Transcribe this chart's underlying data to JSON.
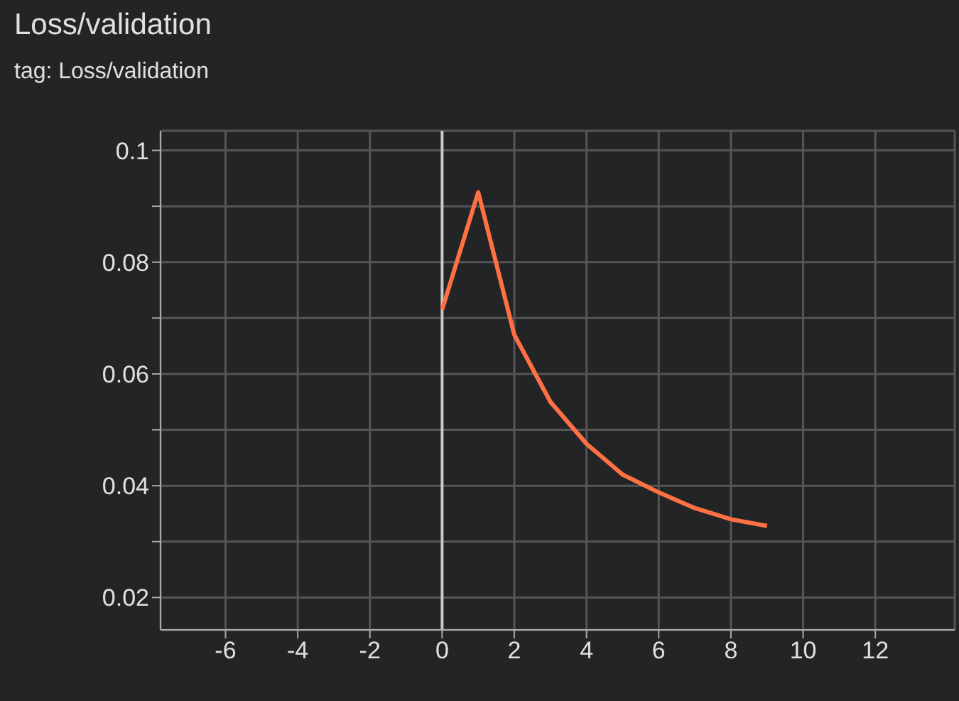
{
  "chart_data": {
    "type": "line",
    "title": "Loss/validation",
    "subtitle": "tag: Loss/validation",
    "x": [
      0,
      1,
      2,
      3,
      4,
      5,
      6,
      7,
      8,
      9
    ],
    "series": [
      {
        "color": "#ff7043",
        "values": [
          0.0715,
          0.0925,
          0.067,
          0.055,
          0.0475,
          0.042,
          0.0388,
          0.036,
          0.034,
          0.0328
        ]
      }
    ],
    "xlim": [
      -7.8,
      14.2
    ],
    "xticks": [
      -6,
      -4,
      -2,
      0,
      2,
      4,
      6,
      8,
      10,
      12
    ],
    "ylim": [
      0.0142,
      0.1035
    ],
    "yticks": [
      {
        "value": 0.02,
        "label": "0.02"
      },
      {
        "value": 0.03,
        "label": null
      },
      {
        "value": 0.04,
        "label": "0.04"
      },
      {
        "value": 0.05,
        "label": null
      },
      {
        "value": 0.06,
        "label": "0.06"
      },
      {
        "value": 0.07,
        "label": null
      },
      {
        "value": 0.08,
        "label": "0.08"
      },
      {
        "value": 0.09,
        "label": null
      },
      {
        "value": 0.1,
        "label": "0.1"
      }
    ],
    "ref_lines": [
      {
        "axis": "x",
        "value": 0,
        "color": "#c8c8c8"
      }
    ],
    "grid": true,
    "marker": "none",
    "line_style": "solid"
  }
}
